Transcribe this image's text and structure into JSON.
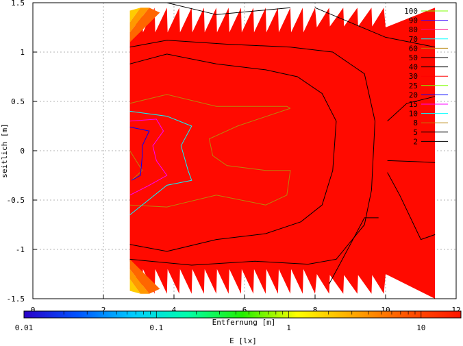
{
  "chart_data": {
    "type": "contour",
    "title": "",
    "xlabel": "Entfernung [m]",
    "ylabel": "seitlich [m]",
    "xlim": [
      0,
      12
    ],
    "ylim": [
      -1.5,
      1.5
    ],
    "x_ticks": [
      "0",
      "2",
      "4",
      "6",
      "8",
      "10",
      "12"
    ],
    "y_ticks": [
      "1.5",
      "1",
      "0.5",
      "0",
      "-0.5",
      "-1",
      "-1.5"
    ],
    "grid": true,
    "legend_position": "top-right",
    "contour_levels": [
      {
        "label": "100",
        "color": "#7fff00"
      },
      {
        "label": "90",
        "color": "#3a00ff"
      },
      {
        "label": "80",
        "color": "#ff007f"
      },
      {
        "label": "70",
        "color": "#00ffff"
      },
      {
        "label": "60",
        "color": "#b8860b"
      },
      {
        "label": "50",
        "color": "#000000"
      },
      {
        "label": "40",
        "color": "#000000"
      },
      {
        "label": "30",
        "color": "#ff0000"
      },
      {
        "label": "25",
        "color": "#7fff00"
      },
      {
        "label": "20",
        "color": "#0000ff"
      },
      {
        "label": "15",
        "color": "#ff00ff"
      },
      {
        "label": "10",
        "color": "#00ffff"
      },
      {
        "label": "8",
        "color": "#b8860b"
      },
      {
        "label": "5",
        "color": "#000000"
      },
      {
        "label": "2",
        "color": "#000000"
      }
    ],
    "fill_color": "#ff0a00",
    "colorbar": {
      "label": "E [lx]",
      "scale": "log",
      "range": [
        0.01,
        20
      ],
      "ticks": [
        "0.01",
        "0.1",
        "1",
        "10"
      ],
      "gradient": [
        "#2a00c8",
        "#0055ff",
        "#00ccff",
        "#00ffaa",
        "#22ee00",
        "#ffff00",
        "#ffaa00",
        "#ff5500",
        "#ff1500"
      ]
    }
  }
}
